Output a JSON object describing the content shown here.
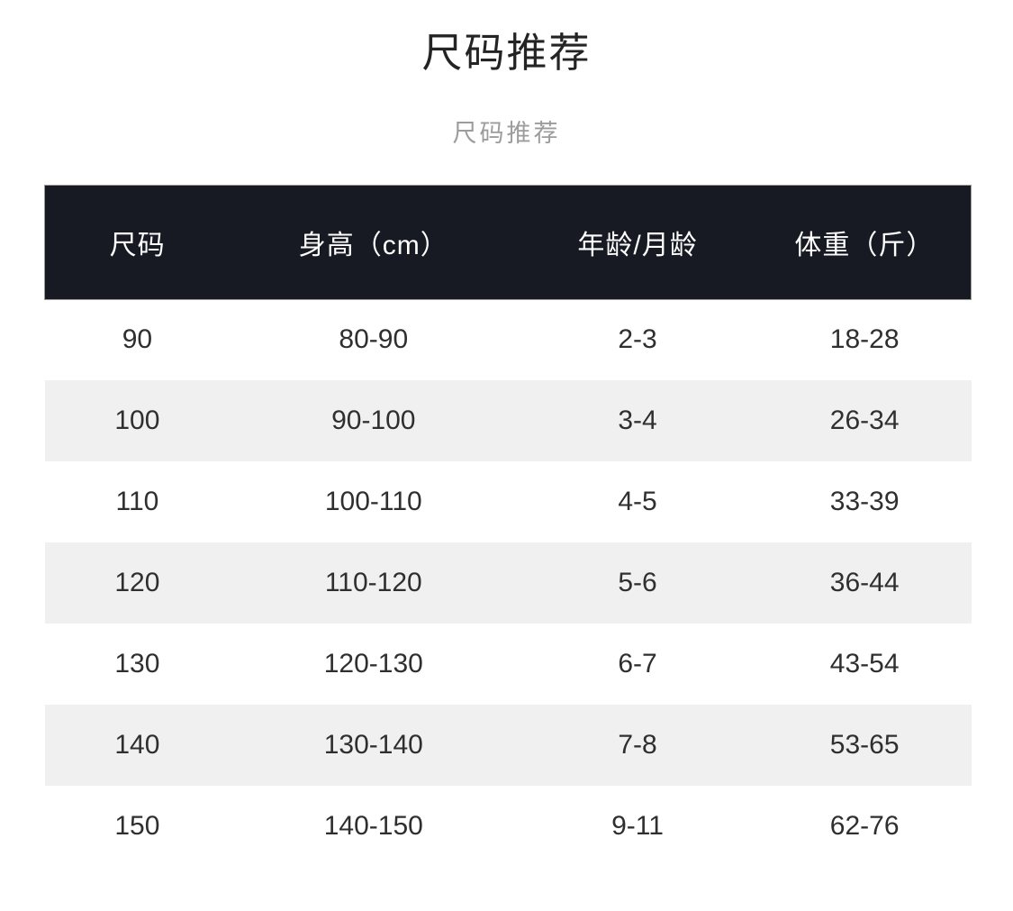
{
  "header": {
    "title": "尺码推荐",
    "subtitle": "尺码推荐"
  },
  "chart_data": {
    "type": "table",
    "title": "尺码推荐",
    "subtitle": "尺码推荐",
    "columns": [
      "尺码",
      "身高（cm）",
      "年龄/月龄",
      "体重（斤）"
    ],
    "rows": [
      [
        "90",
        "80-90",
        "2-3",
        "18-28"
      ],
      [
        "100",
        "90-100",
        "3-4",
        "26-34"
      ],
      [
        "110",
        "100-110",
        "4-5",
        "33-39"
      ],
      [
        "120",
        "110-120",
        "5-6",
        "36-44"
      ],
      [
        "130",
        "120-130",
        "6-7",
        "43-54"
      ],
      [
        "140",
        "130-140",
        "7-8",
        "53-65"
      ],
      [
        "150",
        "140-150",
        "9-11",
        "62-76"
      ]
    ]
  },
  "colors": {
    "header_bg": "#171923",
    "header_text": "#ffffff",
    "header_border": "#9b9b9b",
    "row_alt_bg": "#f0f0f0",
    "body_text": "#2f2f2f",
    "title_text": "#242424",
    "subtitle_text": "#9c9c9c"
  }
}
